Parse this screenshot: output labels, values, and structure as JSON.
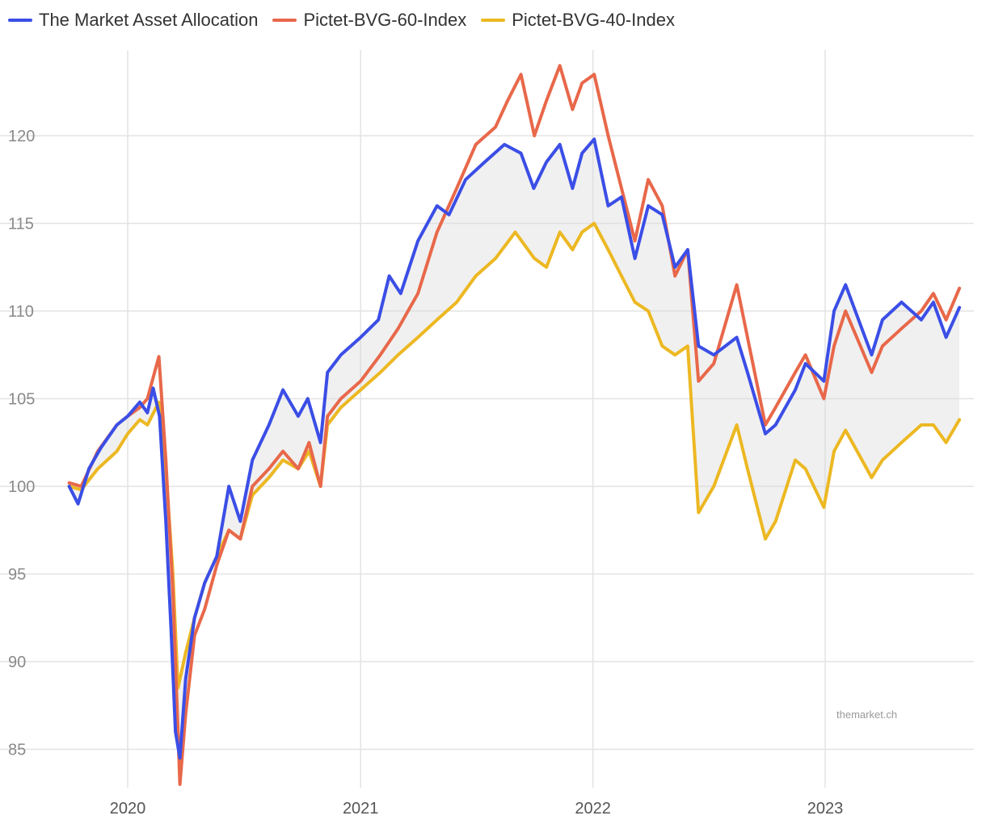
{
  "chart_data": {
    "type": "line",
    "title": "",
    "xlabel": "",
    "ylabel": "",
    "x_ticks": [
      "2020",
      "2021",
      "2022",
      "2023"
    ],
    "y_ticks": [
      85,
      90,
      95,
      100,
      105,
      110,
      115,
      120
    ],
    "ylim": [
      83,
      125
    ],
    "grid": true,
    "legend_position": "top-left",
    "watermark": "themarket.ch",
    "shaded_band": "between The Market Asset Allocation and Pictet-BVG-40-Index",
    "series": [
      {
        "name": "The Market Asset Allocation",
        "color": "#3b4ee6",
        "points": [
          [
            "2019-10-01",
            100.0
          ],
          [
            "2019-10-15",
            99.0
          ],
          [
            "2019-11-01",
            101.0
          ],
          [
            "2019-11-20",
            102.2
          ],
          [
            "2019-12-15",
            103.5
          ],
          [
            "2020-01-01",
            104.0
          ],
          [
            "2020-01-20",
            104.8
          ],
          [
            "2020-02-01",
            104.2
          ],
          [
            "2020-02-10",
            105.6
          ],
          [
            "2020-02-20",
            104.0
          ],
          [
            "2020-03-01",
            98.0
          ],
          [
            "2020-03-09",
            92.0
          ],
          [
            "2020-03-16",
            86.0
          ],
          [
            "2020-03-23",
            84.5
          ],
          [
            "2020-04-01",
            89.0
          ],
          [
            "2020-04-15",
            92.5
          ],
          [
            "2020-05-01",
            94.5
          ],
          [
            "2020-05-20",
            96.0
          ],
          [
            "2020-06-08",
            100.0
          ],
          [
            "2020-06-26",
            98.0
          ],
          [
            "2020-07-15",
            101.5
          ],
          [
            "2020-08-10",
            103.5
          ],
          [
            "2020-09-01",
            105.5
          ],
          [
            "2020-09-25",
            104.0
          ],
          [
            "2020-10-10",
            105.0
          ],
          [
            "2020-10-30",
            102.5
          ],
          [
            "2020-11-10",
            106.5
          ],
          [
            "2020-12-01",
            107.5
          ],
          [
            "2021-01-01",
            108.5
          ],
          [
            "2021-01-29",
            109.5
          ],
          [
            "2021-02-15",
            112.0
          ],
          [
            "2021-03-05",
            111.0
          ],
          [
            "2021-04-01",
            114.0
          ],
          [
            "2021-05-01",
            116.0
          ],
          [
            "2021-05-20",
            115.5
          ],
          [
            "2021-06-15",
            117.5
          ],
          [
            "2021-07-15",
            118.5
          ],
          [
            "2021-08-15",
            119.5
          ],
          [
            "2021-09-10",
            119.0
          ],
          [
            "2021-09-30",
            117.0
          ],
          [
            "2021-10-20",
            118.5
          ],
          [
            "2021-11-10",
            119.5
          ],
          [
            "2021-11-30",
            117.0
          ],
          [
            "2021-12-15",
            119.0
          ],
          [
            "2022-01-03",
            119.8
          ],
          [
            "2022-01-25",
            116.0
          ],
          [
            "2022-02-15",
            116.5
          ],
          [
            "2022-03-08",
            113.0
          ],
          [
            "2022-03-29",
            116.0
          ],
          [
            "2022-04-20",
            115.5
          ],
          [
            "2022-05-10",
            112.5
          ],
          [
            "2022-05-30",
            113.5
          ],
          [
            "2022-06-16",
            108.0
          ],
          [
            "2022-07-10",
            107.5
          ],
          [
            "2022-08-15",
            108.5
          ],
          [
            "2022-09-01",
            106.5
          ],
          [
            "2022-09-29",
            103.0
          ],
          [
            "2022-10-15",
            103.5
          ],
          [
            "2022-11-15",
            105.5
          ],
          [
            "2022-12-01",
            107.0
          ],
          [
            "2022-12-30",
            106.0
          ],
          [
            "2023-01-15",
            110.0
          ],
          [
            "2023-02-02",
            111.5
          ],
          [
            "2023-03-15",
            107.5
          ],
          [
            "2023-04-01",
            109.5
          ],
          [
            "2023-05-01",
            110.5
          ],
          [
            "2023-06-01",
            109.5
          ],
          [
            "2023-06-20",
            110.5
          ],
          [
            "2023-07-10",
            108.5
          ],
          [
            "2023-07-31",
            110.2
          ]
        ]
      },
      {
        "name": "Pictet-BVG-60-Index",
        "color": "#e8684a",
        "points": [
          [
            "2019-10-01",
            100.2
          ],
          [
            "2019-10-20",
            100.0
          ],
          [
            "2019-11-15",
            102.0
          ],
          [
            "2019-12-15",
            103.5
          ],
          [
            "2020-01-01",
            104.0
          ],
          [
            "2020-01-20",
            104.5
          ],
          [
            "2020-02-01",
            105.0
          ],
          [
            "2020-02-19",
            107.4
          ],
          [
            "2020-03-01",
            101.5
          ],
          [
            "2020-03-12",
            94.0
          ],
          [
            "2020-03-23",
            83.0
          ],
          [
            "2020-04-01",
            87.0
          ],
          [
            "2020-04-15",
            91.5
          ],
          [
            "2020-05-01",
            93.0
          ],
          [
            "2020-05-20",
            95.5
          ],
          [
            "2020-06-08",
            97.5
          ],
          [
            "2020-06-26",
            97.0
          ],
          [
            "2020-07-15",
            100.0
          ],
          [
            "2020-08-10",
            101.0
          ],
          [
            "2020-09-01",
            102.0
          ],
          [
            "2020-09-25",
            101.0
          ],
          [
            "2020-10-12",
            102.5
          ],
          [
            "2020-10-30",
            100.0
          ],
          [
            "2020-11-10",
            104.0
          ],
          [
            "2020-12-01",
            105.0
          ],
          [
            "2021-01-01",
            106.0
          ],
          [
            "2021-02-01",
            107.5
          ],
          [
            "2021-03-01",
            109.0
          ],
          [
            "2021-04-01",
            111.0
          ],
          [
            "2021-05-01",
            114.5
          ],
          [
            "2021-06-01",
            117.0
          ],
          [
            "2021-07-01",
            119.5
          ],
          [
            "2021-08-01",
            120.5
          ],
          [
            "2021-08-20",
            122.0
          ],
          [
            "2021-09-10",
            123.5
          ],
          [
            "2021-10-01",
            120.0
          ],
          [
            "2021-10-20",
            122.0
          ],
          [
            "2021-11-10",
            124.0
          ],
          [
            "2021-11-30",
            121.5
          ],
          [
            "2021-12-15",
            123.0
          ],
          [
            "2022-01-03",
            123.5
          ],
          [
            "2022-01-25",
            120.0
          ],
          [
            "2022-02-15",
            117.0
          ],
          [
            "2022-03-08",
            114.0
          ],
          [
            "2022-03-29",
            117.5
          ],
          [
            "2022-04-20",
            116.0
          ],
          [
            "2022-05-10",
            112.0
          ],
          [
            "2022-05-30",
            113.5
          ],
          [
            "2022-06-16",
            106.0
          ],
          [
            "2022-07-10",
            107.0
          ],
          [
            "2022-08-15",
            111.5
          ],
          [
            "2022-09-01",
            108.5
          ],
          [
            "2022-09-29",
            103.5
          ],
          [
            "2022-10-15",
            104.5
          ],
          [
            "2022-11-15",
            106.5
          ],
          [
            "2022-12-01",
            107.5
          ],
          [
            "2022-12-30",
            105.0
          ],
          [
            "2023-01-15",
            108.0
          ],
          [
            "2023-02-02",
            110.0
          ],
          [
            "2023-03-15",
            106.5
          ],
          [
            "2023-04-01",
            108.0
          ],
          [
            "2023-05-01",
            109.0
          ],
          [
            "2023-06-01",
            110.0
          ],
          [
            "2023-06-20",
            111.0
          ],
          [
            "2023-07-10",
            109.5
          ],
          [
            "2023-07-31",
            111.3
          ]
        ]
      },
      {
        "name": "Pictet-BVG-40-Index",
        "color": "#ecb822",
        "points": [
          [
            "2019-10-01",
            100.0
          ],
          [
            "2019-10-20",
            99.8
          ],
          [
            "2019-11-15",
            101.0
          ],
          [
            "2019-12-15",
            102.0
          ],
          [
            "2020-01-01",
            103.0
          ],
          [
            "2020-01-20",
            103.8
          ],
          [
            "2020-02-01",
            103.5
          ],
          [
            "2020-02-19",
            104.8
          ],
          [
            "2020-03-01",
            101.0
          ],
          [
            "2020-03-12",
            95.0
          ],
          [
            "2020-03-20",
            88.5
          ],
          [
            "2020-04-01",
            90.5
          ],
          [
            "2020-04-15",
            92.5
          ],
          [
            "2020-05-01",
            94.5
          ],
          [
            "2020-05-20",
            96.0
          ],
          [
            "2020-06-08",
            97.5
          ],
          [
            "2020-06-26",
            97.0
          ],
          [
            "2020-07-15",
            99.5
          ],
          [
            "2020-08-10",
            100.5
          ],
          [
            "2020-09-01",
            101.5
          ],
          [
            "2020-09-25",
            101.0
          ],
          [
            "2020-10-12",
            102.0
          ],
          [
            "2020-10-30",
            100.0
          ],
          [
            "2020-11-10",
            103.5
          ],
          [
            "2020-12-01",
            104.5
          ],
          [
            "2021-01-01",
            105.5
          ],
          [
            "2021-02-01",
            106.5
          ],
          [
            "2021-03-01",
            107.5
          ],
          [
            "2021-04-01",
            108.5
          ],
          [
            "2021-05-01",
            109.5
          ],
          [
            "2021-06-01",
            110.5
          ],
          [
            "2021-07-01",
            112.0
          ],
          [
            "2021-08-01",
            113.0
          ],
          [
            "2021-09-01",
            114.5
          ],
          [
            "2021-10-01",
            113.0
          ],
          [
            "2021-10-20",
            112.5
          ],
          [
            "2021-11-10",
            114.5
          ],
          [
            "2021-11-30",
            113.5
          ],
          [
            "2021-12-15",
            114.5
          ],
          [
            "2022-01-03",
            115.0
          ],
          [
            "2022-01-25",
            113.5
          ],
          [
            "2022-02-15",
            112.0
          ],
          [
            "2022-03-08",
            110.5
          ],
          [
            "2022-03-29",
            110.0
          ],
          [
            "2022-04-20",
            108.0
          ],
          [
            "2022-05-10",
            107.5
          ],
          [
            "2022-05-30",
            108.0
          ],
          [
            "2022-06-16",
            98.5
          ],
          [
            "2022-07-10",
            100.0
          ],
          [
            "2022-08-15",
            103.5
          ],
          [
            "2022-09-01",
            101.0
          ],
          [
            "2022-09-29",
            97.0
          ],
          [
            "2022-10-15",
            98.0
          ],
          [
            "2022-11-15",
            101.5
          ],
          [
            "2022-12-01",
            101.0
          ],
          [
            "2022-12-30",
            98.8
          ],
          [
            "2023-01-15",
            102.0
          ],
          [
            "2023-02-02",
            103.2
          ],
          [
            "2023-03-15",
            100.5
          ],
          [
            "2023-04-01",
            101.5
          ],
          [
            "2023-05-01",
            102.5
          ],
          [
            "2023-06-01",
            103.5
          ],
          [
            "2023-06-20",
            103.5
          ],
          [
            "2023-07-10",
            102.5
          ],
          [
            "2023-07-31",
            103.8
          ]
        ]
      }
    ]
  }
}
